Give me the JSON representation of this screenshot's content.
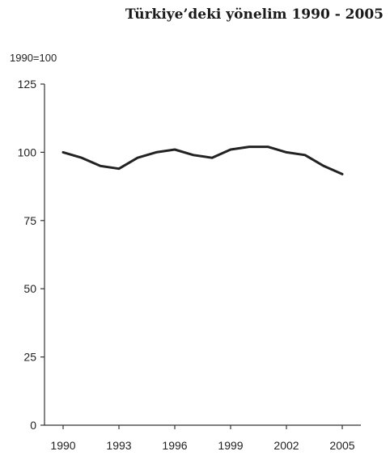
{
  "chart_data": {
    "type": "line",
    "title": "Türkiye’deki yönelim 1990 - 2005",
    "ylabel": "1990=100",
    "xlabel": "",
    "x": [
      1990,
      1991,
      1992,
      1993,
      1994,
      1995,
      1996,
      1997,
      1998,
      1999,
      2000,
      2001,
      2002,
      2003,
      2004,
      2005
    ],
    "series": [
      {
        "values": [
          100,
          98,
          95,
          94,
          98,
          100,
          101,
          99,
          98,
          101,
          102,
          102,
          100,
          99,
          95,
          92
        ]
      }
    ],
    "xlim": [
      1989,
      2006
    ],
    "ylim": [
      0,
      125
    ],
    "xticks": [
      "1990",
      "1993",
      "1996",
      "1999",
      "2002",
      "2005"
    ],
    "yticks": [
      "0",
      "25",
      "50",
      "75",
      "100",
      "125"
    ],
    "grid": false,
    "line_color": "#222222"
  }
}
